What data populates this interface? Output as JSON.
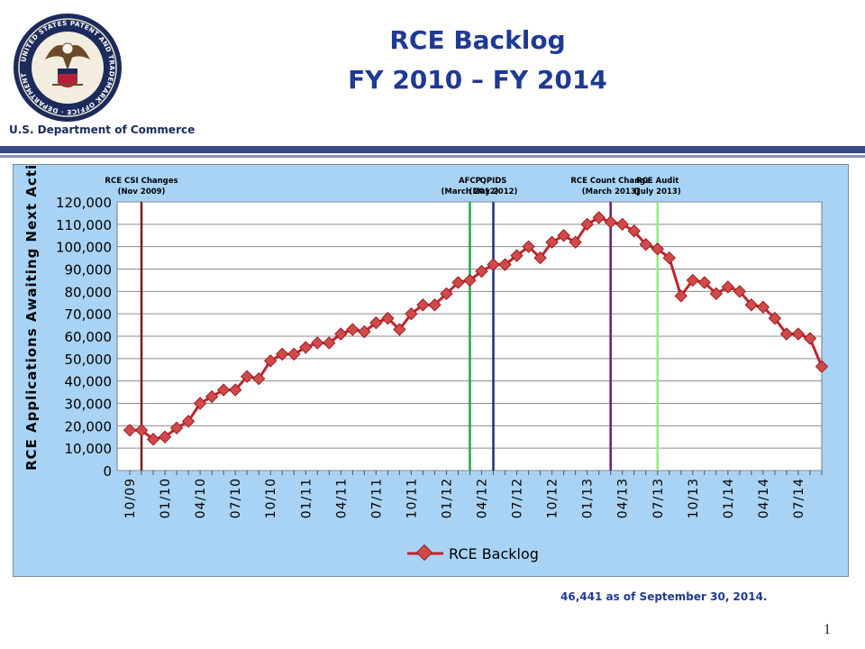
{
  "header": {
    "seal_text": "UNITED STATES PATENT AND TRADEMARK OFFICE · DEPARTMENT OF COMMERCE",
    "department": "U.S. Department of Commerce",
    "title_line1": "RCE Backlog",
    "title_line2": "FY 2010 – FY 2014"
  },
  "colors": {
    "series": "#c0232c",
    "panel": "#a9d3f5",
    "title": "#1f3a93",
    "rule": "#3a4a86"
  },
  "chart_data": {
    "type": "line",
    "ylabel": "RCE Applications Awaiting Next Action",
    "xlabel": "",
    "ylim": [
      0,
      120000
    ],
    "y_ticks": [
      "0",
      "10,000",
      "20,000",
      "30,000",
      "40,000",
      "50,000",
      "60,000",
      "70,000",
      "80,000",
      "90,000",
      "100,000",
      "110,000",
      "120,000"
    ],
    "x_ticks": [
      "10/09",
      "01/10",
      "04/10",
      "07/10",
      "10/10",
      "01/11",
      "04/11",
      "07/11",
      "10/11",
      "01/12",
      "04/12",
      "07/12",
      "10/12",
      "01/13",
      "04/13",
      "07/13",
      "10/13",
      "01/14",
      "04/14",
      "07/14"
    ],
    "grid": true,
    "legend_position": "bottom",
    "series": [
      {
        "name": "RCE Backlog",
        "values": [
          18000,
          18000,
          14000,
          15000,
          19000,
          22000,
          30000,
          33000,
          36000,
          36000,
          42000,
          41000,
          49000,
          52000,
          52000,
          55000,
          57000,
          57000,
          61000,
          63000,
          62000,
          66000,
          68000,
          63000,
          70000,
          74000,
          74000,
          79000,
          84000,
          85000,
          89000,
          92000,
          92000,
          96000,
          100000,
          95000,
          102000,
          105000,
          102000,
          110000,
          113000,
          111000,
          110000,
          107000,
          101000,
          99000,
          95000,
          78000,
          85000,
          84000,
          79000,
          82000,
          80000,
          74000,
          73000,
          68000,
          61000,
          61000,
          59000,
          46441
        ]
      }
    ],
    "events": [
      {
        "label": "RCE CSI Changes",
        "date": "(Nov 2009)",
        "color": "#7a1c14",
        "month_index": 1
      },
      {
        "label": "AFCP",
        "date": "(March 2012)",
        "color": "#1fa84a",
        "month_index": 29
      },
      {
        "label": "QPIDS",
        "date": "(May 2012)",
        "color": "#1e2f7a",
        "month_index": 31
      },
      {
        "label": "RCE Count Change",
        "date": "(March 2013)",
        "color": "#6d1a7a",
        "month_index": 41
      },
      {
        "label": "RCE Audit",
        "date": "(July 2013)",
        "color": "#8ef07a",
        "month_index": 45
      }
    ]
  },
  "footnote": "46,441 as of September 30, 2014.",
  "page_number": "1"
}
